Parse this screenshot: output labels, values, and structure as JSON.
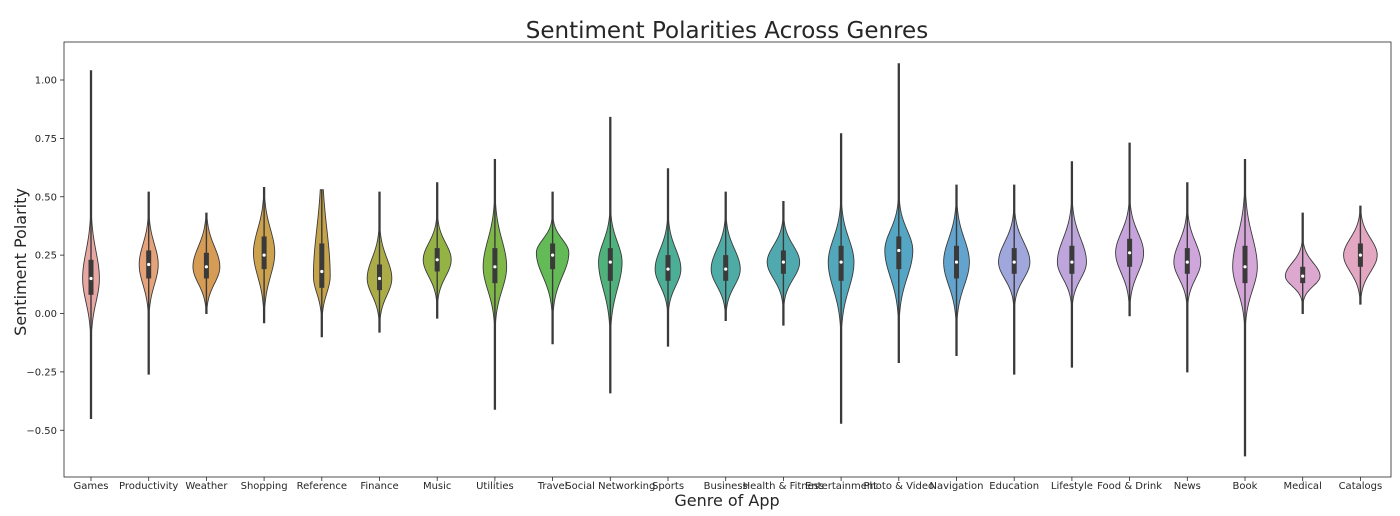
{
  "chart_data": {
    "type": "violin",
    "title": "Sentiment Polarities Across Genres",
    "xlabel": "Genre of App",
    "ylabel": "Sentiment Polarity",
    "ylim": [
      -0.6,
      1.1
    ],
    "yticks": [
      -0.5,
      -0.25,
      0.0,
      0.25,
      0.5,
      0.75,
      1.0
    ],
    "ytick_labels": [
      "−0.50",
      "−0.25",
      "0.00",
      "0.25",
      "0.50",
      "0.75",
      "1.00"
    ],
    "grid": false,
    "legend": "none",
    "categories": [
      "Games",
      "Productivity",
      "Weather",
      "Shopping",
      "Reference",
      "Finance",
      "Music",
      "Utilities",
      "Travel",
      "Social Networking",
      "Sports",
      "Business",
      "Health & Fitness",
      "Entertainment",
      "Photo & Video",
      "Navigation",
      "Education",
      "Lifestyle",
      "Food & Drink",
      "News",
      "Book",
      "Medical",
      "Catalogs"
    ],
    "colors": [
      "#e8a7a3",
      "#e6a37a",
      "#d69b55",
      "#cda24f",
      "#c4a34b",
      "#abac48",
      "#95b345",
      "#7fb749",
      "#64ba56",
      "#4fb27d",
      "#4dae98",
      "#4faba6",
      "#51a9b0",
      "#53a7ba",
      "#55a5c4",
      "#63a4cf",
      "#9fa7dd",
      "#bea5dc",
      "#c7a3dc",
      "#cea6dc",
      "#d5a7d8",
      "#dda8cf",
      "#e3a7c1"
    ],
    "series": [
      {
        "name": "Games",
        "min": -0.45,
        "q1": 0.08,
        "median": 0.15,
        "q3": 0.23,
        "max": 1.04,
        "density_peak": 0.15,
        "width": 0.3
      },
      {
        "name": "Productivity",
        "min": -0.26,
        "q1": 0.15,
        "median": 0.21,
        "q3": 0.27,
        "max": 0.52,
        "density_peak": 0.21,
        "width": 0.34
      },
      {
        "name": "Weather",
        "min": 0.0,
        "q1": 0.15,
        "median": 0.2,
        "q3": 0.26,
        "max": 0.43,
        "density_peak": 0.2,
        "width": 0.48
      },
      {
        "name": "Shopping",
        "min": -0.04,
        "q1": 0.19,
        "median": 0.25,
        "q3": 0.33,
        "max": 0.54,
        "density_peak": 0.26,
        "width": 0.38
      },
      {
        "name": "Reference",
        "min": -0.1,
        "q1": 0.11,
        "median": 0.18,
        "q3": 0.3,
        "max": 0.53,
        "density_peak": 0.16,
        "width": 0.3
      },
      {
        "name": "Finance",
        "min": -0.08,
        "q1": 0.1,
        "median": 0.15,
        "q3": 0.21,
        "max": 0.52,
        "density_peak": 0.15,
        "width": 0.44
      },
      {
        "name": "Music",
        "min": -0.02,
        "q1": 0.18,
        "median": 0.23,
        "q3": 0.28,
        "max": 0.56,
        "density_peak": 0.23,
        "width": 0.5
      },
      {
        "name": "Utilities",
        "min": -0.41,
        "q1": 0.13,
        "median": 0.2,
        "q3": 0.28,
        "max": 0.66,
        "density_peak": 0.2,
        "width": 0.42
      },
      {
        "name": "Travel",
        "min": -0.13,
        "q1": 0.19,
        "median": 0.25,
        "q3": 0.3,
        "max": 0.52,
        "density_peak": 0.26,
        "width": 0.58
      },
      {
        "name": "Social Networking",
        "min": -0.34,
        "q1": 0.14,
        "median": 0.22,
        "q3": 0.28,
        "max": 0.84,
        "density_peak": 0.22,
        "width": 0.42
      },
      {
        "name": "Sports",
        "min": -0.14,
        "q1": 0.14,
        "median": 0.19,
        "q3": 0.25,
        "max": 0.62,
        "density_peak": 0.19,
        "width": 0.46
      },
      {
        "name": "Business",
        "min": -0.03,
        "q1": 0.14,
        "median": 0.19,
        "q3": 0.25,
        "max": 0.52,
        "density_peak": 0.19,
        "width": 0.52
      },
      {
        "name": "Health & Fitness",
        "min": -0.05,
        "q1": 0.17,
        "median": 0.22,
        "q3": 0.27,
        "max": 0.48,
        "density_peak": 0.22,
        "width": 0.58
      },
      {
        "name": "Entertainment",
        "min": -0.47,
        "q1": 0.14,
        "median": 0.22,
        "q3": 0.29,
        "max": 0.77,
        "density_peak": 0.22,
        "width": 0.46
      },
      {
        "name": "Photo & Video",
        "min": -0.21,
        "q1": 0.19,
        "median": 0.27,
        "q3": 0.33,
        "max": 1.07,
        "density_peak": 0.27,
        "width": 0.5
      },
      {
        "name": "Navigation",
        "min": -0.18,
        "q1": 0.15,
        "median": 0.22,
        "q3": 0.29,
        "max": 0.55,
        "density_peak": 0.22,
        "width": 0.46
      },
      {
        "name": "Education",
        "min": -0.26,
        "q1": 0.17,
        "median": 0.22,
        "q3": 0.28,
        "max": 0.55,
        "density_peak": 0.22,
        "width": 0.56
      },
      {
        "name": "Lifestyle",
        "min": -0.23,
        "q1": 0.17,
        "median": 0.22,
        "q3": 0.29,
        "max": 0.65,
        "density_peak": 0.22,
        "width": 0.52
      },
      {
        "name": "Food & Drink",
        "min": -0.01,
        "q1": 0.2,
        "median": 0.26,
        "q3": 0.32,
        "max": 0.73,
        "density_peak": 0.26,
        "width": 0.5
      },
      {
        "name": "News",
        "min": -0.25,
        "q1": 0.17,
        "median": 0.22,
        "q3": 0.28,
        "max": 0.56,
        "density_peak": 0.22,
        "width": 0.48
      },
      {
        "name": "Book",
        "min": -0.61,
        "q1": 0.13,
        "median": 0.2,
        "q3": 0.29,
        "max": 0.66,
        "density_peak": 0.2,
        "width": 0.44
      },
      {
        "name": "Medical",
        "min": 0.0,
        "q1": 0.13,
        "median": 0.16,
        "q3": 0.2,
        "max": 0.43,
        "density_peak": 0.16,
        "width": 0.62
      },
      {
        "name": "Catalogs",
        "min": 0.04,
        "q1": 0.2,
        "median": 0.25,
        "q3": 0.3,
        "max": 0.46,
        "density_peak": 0.25,
        "width": 0.6
      }
    ]
  }
}
